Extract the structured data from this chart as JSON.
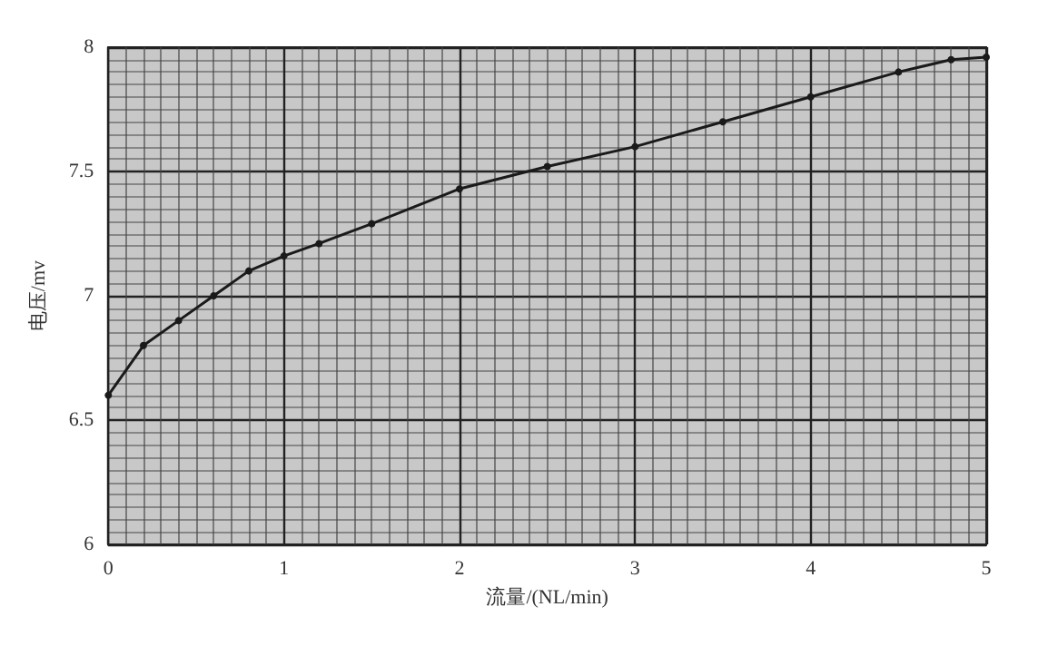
{
  "chart_data": {
    "type": "line",
    "xlabel": "流量/(NL/min)",
    "ylabel": "电压/mv",
    "x": [
      0,
      0.2,
      0.4,
      0.6,
      0.8,
      1,
      1.2,
      1.5,
      2,
      2.5,
      3,
      3.5,
      4,
      4.5,
      4.8,
      5
    ],
    "series": [
      {
        "color": "#1a1a1a",
        "values": [
          6.6,
          6.8,
          6.9,
          7.0,
          7.1,
          7.16,
          7.21,
          7.29,
          7.43,
          7.52,
          7.6,
          7.7,
          7.8,
          7.9,
          7.95,
          7.96
        ]
      }
    ],
    "xlim": [
      0,
      5
    ],
    "xticks": [
      0,
      1,
      2,
      3,
      4,
      5
    ],
    "ylim": [
      6,
      8
    ],
    "yticks": [
      6,
      6.5,
      7,
      7.5,
      8
    ],
    "grid": true,
    "marker": "circle",
    "line_style": "solid"
  }
}
